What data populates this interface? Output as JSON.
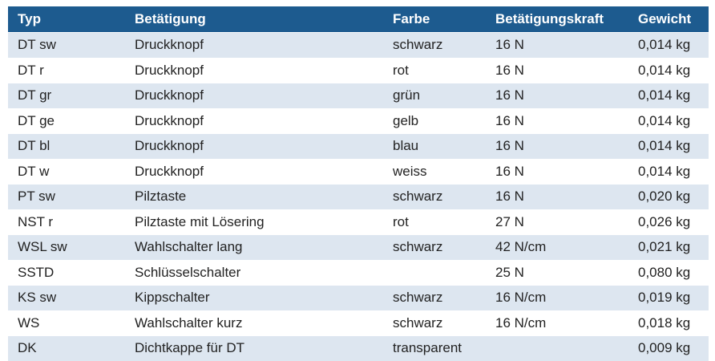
{
  "table": {
    "header": [
      "Typ",
      "Betätigung",
      "Farbe",
      "Betätigungskraft",
      "Gewicht"
    ],
    "rows": [
      [
        "DT sw",
        "Druckknopf",
        "schwarz",
        "16 N",
        "0,014 kg"
      ],
      [
        "DT r",
        "Druckknopf",
        "rot",
        "16 N",
        "0,014 kg"
      ],
      [
        "DT gr",
        "Druckknopf",
        "grün",
        "16 N",
        "0,014 kg"
      ],
      [
        "DT ge",
        "Druckknopf",
        "gelb",
        "16 N",
        "0,014 kg"
      ],
      [
        "DT bl",
        "Druckknopf",
        "blau",
        "16 N",
        "0,014 kg"
      ],
      [
        "DT w",
        "Druckknopf",
        "weiss",
        "16 N",
        "0,014 kg"
      ],
      [
        "PT sw",
        "Pilztaste",
        "schwarz",
        "16 N",
        "0,020 kg"
      ],
      [
        "NST r",
        "Pilztaste mit Lösering",
        "rot",
        "27 N",
        "0,026 kg"
      ],
      [
        "WSL sw",
        "Wahlschalter lang",
        "schwarz",
        "42 N/cm",
        "0,021 kg"
      ],
      [
        "SSTD",
        "Schlüsselschalter",
        null,
        "25 N",
        "0,080 kg"
      ],
      [
        "KS sw",
        "Kippschalter",
        "schwarz",
        "16 N/cm",
        "0,019 kg"
      ],
      [
        "WS",
        "Wahlschalter kurz",
        "schwarz",
        "16 N/cm",
        "0,018 kg"
      ],
      [
        "DK",
        "Dichtkappe für DT",
        "transparent",
        null,
        "0,009 kg"
      ]
    ]
  }
}
